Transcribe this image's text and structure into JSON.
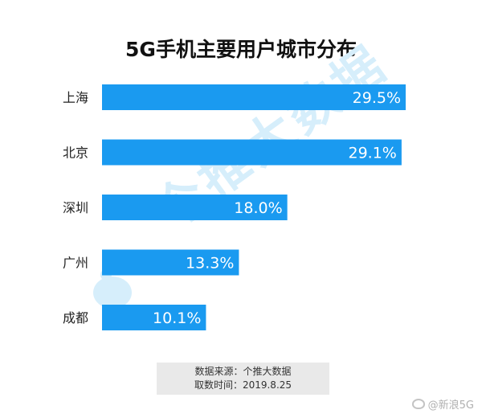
{
  "chart_data": {
    "type": "bar",
    "orientation": "horizontal",
    "title": "5G手机主要用户城市分布",
    "categories": [
      "上海",
      "北京",
      "深圳",
      "广州",
      "成都"
    ],
    "values": [
      29.5,
      29.1,
      18.0,
      13.3,
      10.1
    ],
    "value_labels": [
      "29.5%",
      "29.1%",
      "18.0%",
      "13.3%",
      "10.1%"
    ],
    "unit": "%",
    "xlim": [
      0,
      29.5
    ],
    "grid": false,
    "bar_color": "#1a9af0",
    "label_color": "#ffffff"
  },
  "source": {
    "line1": "数据来源：个推大数据",
    "line2": "取数时间：2019.8.25"
  },
  "watermark": {
    "text": "个推大数据"
  },
  "weibo": {
    "handle": "@新浪5G"
  }
}
